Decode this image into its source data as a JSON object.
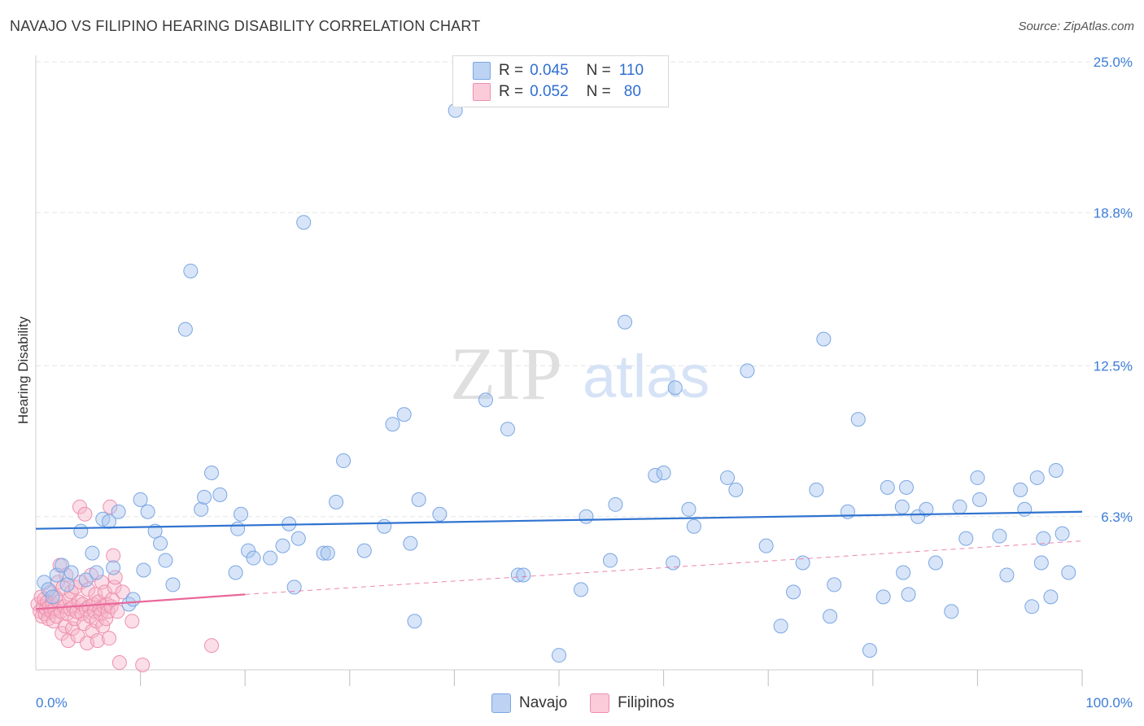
{
  "title": "NAVAJO VS FILIPINO HEARING DISABILITY CORRELATION CHART",
  "source": "Source: ZipAtlas.com",
  "watermark": {
    "zip": "ZIP",
    "atlas": "atlas"
  },
  "colors": {
    "navajo_fill": "#a9c6f0",
    "navajo_stroke": "#7aa6e3",
    "navajo_line": "#2f73d0",
    "filipino_fill": "#f6b6c9",
    "filipino_stroke": "#ee8fae",
    "filipino_line": "#e9679a",
    "grid": "#e6e6e6",
    "accent_text": "#3b7dd8"
  },
  "legend": {
    "rows": [
      {
        "series": "Navajo",
        "r_label": "R =",
        "r_value": "0.045",
        "n_label": "N =",
        "n_value": "110"
      },
      {
        "series": "Filipinos",
        "r_label": "R =",
        "r_value": "0.052",
        "n_label": "N =",
        "n_value": "80"
      }
    ]
  },
  "bottom_legend": [
    "Navajo",
    "Filipinos"
  ],
  "chart_data": {
    "type": "scatter",
    "title": "NAVAJO VS FILIPINO HEARING DISABILITY CORRELATION CHART",
    "xlabel": "",
    "ylabel": "Hearing Disability",
    "xlim": [
      0,
      100
    ],
    "ylim": [
      0,
      25
    ],
    "x_tick_labels": [
      "0.0%",
      "100.0%"
    ],
    "y_ticks": [
      6.3,
      12.5,
      18.8,
      25.0
    ],
    "y_tick_labels": [
      "6.3%",
      "12.5%",
      "18.8%",
      "25.0%"
    ],
    "grid": true,
    "series": [
      {
        "name": "Navajo",
        "trend": {
          "x": [
            0,
            100
          ],
          "y": [
            5.8,
            6.5
          ],
          "style": "solid"
        },
        "points": [
          [
            0.8,
            3.6
          ],
          [
            1.2,
            3.3
          ],
          [
            1.6,
            3.0
          ],
          [
            2.0,
            3.9
          ],
          [
            2.5,
            4.3
          ],
          [
            3.0,
            3.5
          ],
          [
            3.4,
            4.0
          ],
          [
            4.3,
            5.7
          ],
          [
            4.8,
            3.7
          ],
          [
            5.4,
            4.8
          ],
          [
            5.8,
            4.0
          ],
          [
            6.4,
            6.2
          ],
          [
            7.0,
            6.1
          ],
          [
            7.4,
            4.2
          ],
          [
            7.9,
            6.5
          ],
          [
            8.9,
            2.7
          ],
          [
            9.3,
            2.9
          ],
          [
            10.0,
            7.0
          ],
          [
            10.3,
            4.1
          ],
          [
            10.7,
            6.5
          ],
          [
            11.4,
            5.7
          ],
          [
            11.9,
            5.2
          ],
          [
            12.4,
            4.5
          ],
          [
            13.1,
            3.5
          ],
          [
            14.3,
            14.0
          ],
          [
            14.8,
            16.4
          ],
          [
            15.8,
            6.6
          ],
          [
            16.1,
            7.1
          ],
          [
            16.8,
            8.1
          ],
          [
            17.6,
            7.2
          ],
          [
            19.1,
            4.0
          ],
          [
            19.3,
            5.8
          ],
          [
            19.6,
            6.4
          ],
          [
            20.3,
            4.9
          ],
          [
            20.8,
            4.6
          ],
          [
            22.4,
            4.6
          ],
          [
            23.6,
            5.1
          ],
          [
            24.2,
            6.0
          ],
          [
            24.7,
            3.4
          ],
          [
            25.1,
            5.4
          ],
          [
            25.6,
            18.4
          ],
          [
            27.5,
            4.8
          ],
          [
            27.9,
            4.8
          ],
          [
            28.7,
            6.9
          ],
          [
            29.4,
            8.6
          ],
          [
            31.4,
            4.9
          ],
          [
            33.3,
            5.9
          ],
          [
            34.1,
            10.1
          ],
          [
            35.2,
            10.5
          ],
          [
            35.8,
            5.2
          ],
          [
            36.2,
            2.0
          ],
          [
            36.6,
            7.0
          ],
          [
            38.6,
            6.4
          ],
          [
            40.1,
            23.0
          ],
          [
            43.0,
            11.1
          ],
          [
            45.1,
            9.9
          ],
          [
            46.1,
            3.9
          ],
          [
            46.6,
            3.9
          ],
          [
            50.0,
            0.6
          ],
          [
            52.1,
            3.3
          ],
          [
            52.6,
            6.3
          ],
          [
            54.9,
            4.5
          ],
          [
            55.4,
            6.8
          ],
          [
            56.3,
            14.3
          ],
          [
            59.2,
            8.0
          ],
          [
            60.0,
            8.1
          ],
          [
            60.9,
            4.4
          ],
          [
            61.1,
            11.6
          ],
          [
            62.4,
            6.6
          ],
          [
            62.9,
            5.9
          ],
          [
            66.1,
            7.9
          ],
          [
            66.9,
            7.4
          ],
          [
            68.0,
            12.3
          ],
          [
            69.8,
            5.1
          ],
          [
            71.2,
            1.8
          ],
          [
            72.4,
            3.2
          ],
          [
            73.3,
            4.4
          ],
          [
            74.6,
            7.4
          ],
          [
            75.3,
            13.6
          ],
          [
            75.9,
            2.2
          ],
          [
            76.3,
            3.5
          ],
          [
            77.6,
            6.5
          ],
          [
            78.6,
            10.3
          ],
          [
            79.7,
            0.8
          ],
          [
            81.0,
            3.0
          ],
          [
            81.4,
            7.5
          ],
          [
            82.8,
            6.7
          ],
          [
            82.9,
            4.0
          ],
          [
            83.2,
            7.5
          ],
          [
            83.4,
            3.1
          ],
          [
            84.3,
            6.3
          ],
          [
            85.1,
            6.6
          ],
          [
            86.0,
            4.4
          ],
          [
            87.5,
            2.4
          ],
          [
            88.3,
            6.7
          ],
          [
            88.9,
            5.4
          ],
          [
            90.0,
            7.9
          ],
          [
            90.2,
            7.0
          ],
          [
            92.1,
            5.5
          ],
          [
            92.8,
            3.9
          ],
          [
            94.1,
            7.4
          ],
          [
            94.5,
            6.6
          ],
          [
            95.2,
            2.6
          ],
          [
            95.7,
            7.9
          ],
          [
            96.1,
            4.4
          ],
          [
            96.3,
            5.4
          ],
          [
            97.0,
            3.0
          ],
          [
            97.5,
            8.2
          ],
          [
            98.1,
            5.6
          ],
          [
            98.7,
            4.0
          ]
        ]
      },
      {
        "name": "Filipinos",
        "trend": {
          "x": [
            0,
            20
          ],
          "y": [
            2.5,
            3.1
          ],
          "style": "solid",
          "extension": {
            "x": [
              20,
              100
            ],
            "y": [
              3.1,
              5.3
            ],
            "style": "dashed"
          }
        },
        "points": [
          [
            0.2,
            2.7
          ],
          [
            0.4,
            2.4
          ],
          [
            0.5,
            3.0
          ],
          [
            0.6,
            2.2
          ],
          [
            0.7,
            2.6
          ],
          [
            0.8,
            2.9
          ],
          [
            0.9,
            2.3
          ],
          [
            1.0,
            2.5
          ],
          [
            1.1,
            2.8
          ],
          [
            1.2,
            2.1
          ],
          [
            1.3,
            2.6
          ],
          [
            1.4,
            3.2
          ],
          [
            1.5,
            2.4
          ],
          [
            1.6,
            2.7
          ],
          [
            1.7,
            2.0
          ],
          [
            1.8,
            2.5
          ],
          [
            1.9,
            3.0
          ],
          [
            2.0,
            2.2
          ],
          [
            2.1,
            3.6
          ],
          [
            2.2,
            2.8
          ],
          [
            2.3,
            4.3
          ],
          [
            2.4,
            2.4
          ],
          [
            2.5,
            1.5
          ],
          [
            2.6,
            3.4
          ],
          [
            2.7,
            2.6
          ],
          [
            2.8,
            1.8
          ],
          [
            2.9,
            3.9
          ],
          [
            3.0,
            2.3
          ],
          [
            3.1,
            1.2
          ],
          [
            3.2,
            2.9
          ],
          [
            3.3,
            2.5
          ],
          [
            3.4,
            3.2
          ],
          [
            3.5,
            1.7
          ],
          [
            3.6,
            2.6
          ],
          [
            3.7,
            2.1
          ],
          [
            3.8,
            3.4
          ],
          [
            3.9,
            2.4
          ],
          [
            4.0,
            1.4
          ],
          [
            4.1,
            2.8
          ],
          [
            4.2,
            6.7
          ],
          [
            4.3,
            3.6
          ],
          [
            4.4,
            2.3
          ],
          [
            4.5,
            2.7
          ],
          [
            4.6,
            1.9
          ],
          [
            4.7,
            6.4
          ],
          [
            4.8,
            2.5
          ],
          [
            4.9,
            1.1
          ],
          [
            5.0,
            3.3
          ],
          [
            5.1,
            2.6
          ],
          [
            5.2,
            2.2
          ],
          [
            5.3,
            3.9
          ],
          [
            5.4,
            1.6
          ],
          [
            5.5,
            2.7
          ],
          [
            5.6,
            2.4
          ],
          [
            5.7,
            3.1
          ],
          [
            5.8,
            2.0
          ],
          [
            5.9,
            1.2
          ],
          [
            6.0,
            2.8
          ],
          [
            6.1,
            2.5
          ],
          [
            6.2,
            2.3
          ],
          [
            6.3,
            3.6
          ],
          [
            6.4,
            1.8
          ],
          [
            6.5,
            2.6
          ],
          [
            6.6,
            3.2
          ],
          [
            6.7,
            2.1
          ],
          [
            6.8,
            2.7
          ],
          [
            6.9,
            2.4
          ],
          [
            7.0,
            1.3
          ],
          [
            7.1,
            6.7
          ],
          [
            7.2,
            2.6
          ],
          [
            7.3,
            2.9
          ],
          [
            7.4,
            4.7
          ],
          [
            7.5,
            3.4
          ],
          [
            7.6,
            3.8
          ],
          [
            7.8,
            2.4
          ],
          [
            8.0,
            0.3
          ],
          [
            8.3,
            3.2
          ],
          [
            9.2,
            2.0
          ],
          [
            10.2,
            0.2
          ],
          [
            16.8,
            1.0
          ]
        ]
      }
    ]
  }
}
